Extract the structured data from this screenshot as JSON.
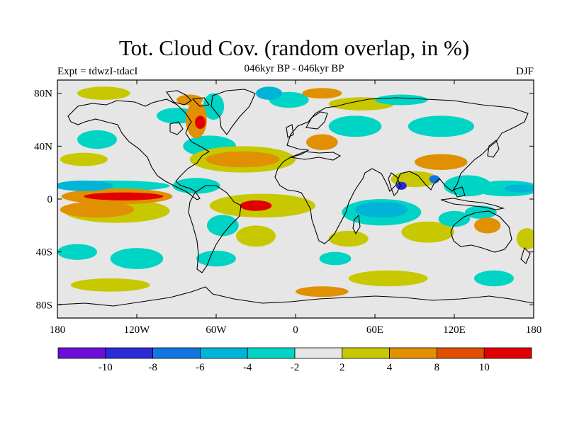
{
  "title": "Tot. Cloud Cov. (random overlap, in %)",
  "subtitle": "046kyr BP - 046kyr BP",
  "experiment": "Expt = tdwzI-tdacI",
  "season": "DJF",
  "map": {
    "projection": "cylindrical-equidistant",
    "lon_range": [
      -180,
      180
    ],
    "lat_range": [
      -90,
      90
    ],
    "lat_ticks": [
      {
        "value": 80,
        "label": "80N"
      },
      {
        "value": 40,
        "label": "40N"
      },
      {
        "value": 0,
        "label": "0"
      },
      {
        "value": -40,
        "label": "40S"
      },
      {
        "value": -80,
        "label": "80S"
      }
    ],
    "lon_ticks": [
      {
        "value": -180,
        "label": "180"
      },
      {
        "value": -120,
        "label": "120W"
      },
      {
        "value": -60,
        "label": "60W"
      },
      {
        "value": 0,
        "label": "0"
      },
      {
        "value": 60,
        "label": "60E"
      },
      {
        "value": 120,
        "label": "120E"
      },
      {
        "value": 180,
        "label": "180"
      }
    ],
    "background_color": "#e6e6e6"
  },
  "colorbar": {
    "colors": [
      "#6a0ed8",
      "#2b2bd6",
      "#1176e0",
      "#00b4d8",
      "#00d4c4",
      "#e6e6e6",
      "#c8c800",
      "#e09000",
      "#e05000",
      "#e00000"
    ],
    "boundaries": [
      {
        "value": -10,
        "label": "-10"
      },
      {
        "value": -8,
        "label": "-8"
      },
      {
        "value": -6,
        "label": "-6"
      },
      {
        "value": -4,
        "label": "-4"
      },
      {
        "value": -2,
        "label": "-2"
      },
      {
        "value": 2,
        "label": "2"
      },
      {
        "value": 4,
        "label": "4"
      },
      {
        "value": 8,
        "label": "8"
      },
      {
        "value": 10,
        "label": "10"
      }
    ]
  },
  "anomalies": [
    {
      "lon": -130,
      "lat": 2,
      "rx": 30,
      "ry": 3,
      "level": 10
    },
    {
      "lon": -135,
      "lat": 2,
      "rx": 42,
      "ry": 6,
      "level": 6
    },
    {
      "lon": -150,
      "lat": -8,
      "rx": 28,
      "ry": 6,
      "level": 6
    },
    {
      "lon": -135,
      "lat": -9,
      "rx": 40,
      "ry": 9,
      "level": 3
    },
    {
      "lon": -140,
      "lat": 10,
      "rx": 45,
      "ry": 4,
      "level": -3
    },
    {
      "lon": -160,
      "lat": 10,
      "rx": 22,
      "ry": 4,
      "level": -6
    },
    {
      "lon": -150,
      "lat": 45,
      "rx": 15,
      "ry": 7,
      "level": -3
    },
    {
      "lon": -160,
      "lat": 30,
      "rx": 18,
      "ry": 5,
      "level": 3
    },
    {
      "lon": -145,
      "lat": 80,
      "rx": 20,
      "ry": 5,
      "level": 3
    },
    {
      "lon": -90,
      "lat": 63,
      "rx": 15,
      "ry": 6,
      "level": -3
    },
    {
      "lon": -75,
      "lat": 60,
      "rx": 8,
      "ry": 14,
      "level": 6
    },
    {
      "lon": -72,
      "lat": 58,
      "rx": 4,
      "ry": 5,
      "level": 10
    },
    {
      "lon": -80,
      "lat": 75,
      "rx": 10,
      "ry": 4,
      "level": 6
    },
    {
      "lon": -62,
      "lat": 70,
      "rx": 8,
      "ry": 10,
      "level": -3
    },
    {
      "lon": -65,
      "lat": 40,
      "rx": 20,
      "ry": 8,
      "level": -3
    },
    {
      "lon": -40,
      "lat": 30,
      "rx": 28,
      "ry": 6,
      "level": 6
    },
    {
      "lon": -40,
      "lat": 30,
      "rx": 40,
      "ry": 10,
      "level": 3
    },
    {
      "lon": -75,
      "lat": 10,
      "rx": 18,
      "ry": 6,
      "level": -3
    },
    {
      "lon": -30,
      "lat": -5,
      "rx": 12,
      "ry": 4,
      "level": 10
    },
    {
      "lon": -25,
      "lat": -5,
      "rx": 40,
      "ry": 9,
      "level": 3
    },
    {
      "lon": -55,
      "lat": -20,
      "rx": 12,
      "ry": 8,
      "level": -3
    },
    {
      "lon": -30,
      "lat": -28,
      "rx": 15,
      "ry": 8,
      "level": 3
    },
    {
      "lon": -60,
      "lat": -45,
      "rx": 15,
      "ry": 6,
      "level": -3
    },
    {
      "lon": -120,
      "lat": -45,
      "rx": 20,
      "ry": 8,
      "level": -3
    },
    {
      "lon": -165,
      "lat": -40,
      "rx": 15,
      "ry": 6,
      "level": -3
    },
    {
      "lon": -140,
      "lat": -65,
      "rx": 30,
      "ry": 5,
      "level": 3
    },
    {
      "lon": -20,
      "lat": 80,
      "rx": 10,
      "ry": 5,
      "level": -6
    },
    {
      "lon": -5,
      "lat": 75,
      "rx": 15,
      "ry": 6,
      "level": -3
    },
    {
      "lon": 20,
      "lat": 80,
      "rx": 15,
      "ry": 4,
      "level": 6
    },
    {
      "lon": 50,
      "lat": 72,
      "rx": 25,
      "ry": 5,
      "level": 3
    },
    {
      "lon": 80,
      "lat": 75,
      "rx": 20,
      "ry": 4,
      "level": -3
    },
    {
      "lon": 20,
      "lat": 43,
      "rx": 12,
      "ry": 6,
      "level": 6
    },
    {
      "lon": 45,
      "lat": 55,
      "rx": 20,
      "ry": 8,
      "level": -3
    },
    {
      "lon": 110,
      "lat": 55,
      "rx": 25,
      "ry": 8,
      "level": -3
    },
    {
      "lon": 110,
      "lat": 28,
      "rx": 20,
      "ry": 6,
      "level": 6
    },
    {
      "lon": 90,
      "lat": 15,
      "rx": 18,
      "ry": 6,
      "level": 3
    },
    {
      "lon": 80,
      "lat": 10,
      "rx": 4,
      "ry": 3,
      "level": -10
    },
    {
      "lon": 105,
      "lat": 15,
      "rx": 4,
      "ry": 3,
      "level": -8
    },
    {
      "lon": 130,
      "lat": 10,
      "rx": 18,
      "ry": 8,
      "level": -3
    },
    {
      "lon": 160,
      "lat": 8,
      "rx": 25,
      "ry": 6,
      "level": -3
    },
    {
      "lon": 170,
      "lat": 8,
      "rx": 12,
      "ry": 3,
      "level": -6
    },
    {
      "lon": 65,
      "lat": -8,
      "rx": 20,
      "ry": 6,
      "level": -6
    },
    {
      "lon": 65,
      "lat": -10,
      "rx": 30,
      "ry": 10,
      "level": -3
    },
    {
      "lon": 100,
      "lat": -25,
      "rx": 20,
      "ry": 8,
      "level": 3
    },
    {
      "lon": 120,
      "lat": -15,
      "rx": 12,
      "ry": 6,
      "level": -3
    },
    {
      "lon": 140,
      "lat": -10,
      "rx": 12,
      "ry": 5,
      "level": -3
    },
    {
      "lon": 145,
      "lat": -20,
      "rx": 10,
      "ry": 6,
      "level": 6
    },
    {
      "lon": 40,
      "lat": -30,
      "rx": 15,
      "ry": 6,
      "level": 3
    },
    {
      "lon": 20,
      "lat": -70,
      "rx": 20,
      "ry": 4,
      "level": 6
    },
    {
      "lon": 70,
      "lat": -60,
      "rx": 30,
      "ry": 6,
      "level": 3
    },
    {
      "lon": 150,
      "lat": -60,
      "rx": 15,
      "ry": 6,
      "level": -3
    },
    {
      "lon": 30,
      "lat": -45,
      "rx": 12,
      "ry": 5,
      "level": -3
    },
    {
      "lon": 175,
      "lat": -30,
      "rx": 8,
      "ry": 8,
      "level": 3
    }
  ]
}
